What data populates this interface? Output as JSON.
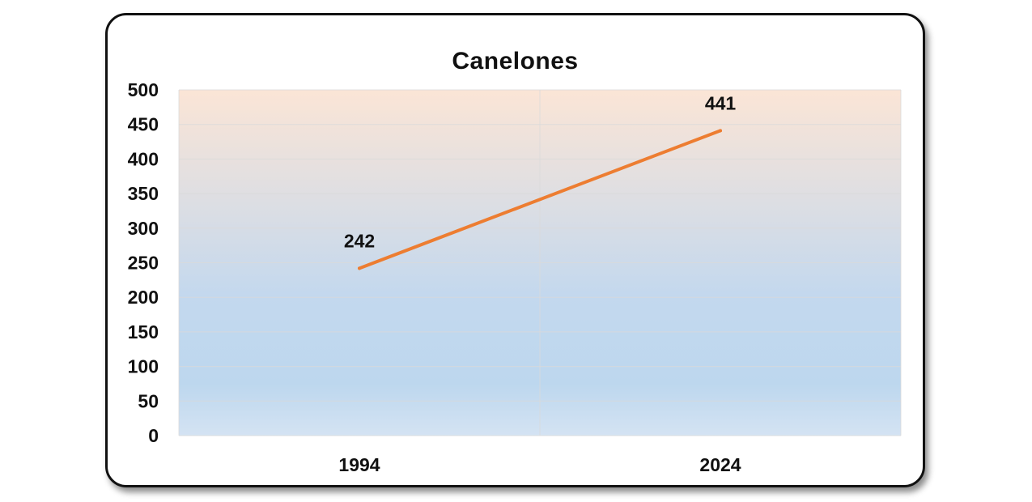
{
  "chart_data": {
    "type": "line",
    "title": "Canelones",
    "categories": [
      "1994",
      "2024"
    ],
    "series": [
      {
        "values": [
          242,
          441
        ],
        "color": "#ED7D31"
      }
    ],
    "data_labels": [
      "242",
      "441"
    ],
    "ylim": [
      0,
      500
    ],
    "y_ticks": [
      0,
      50,
      100,
      150,
      200,
      250,
      300,
      350,
      400,
      450,
      500
    ],
    "grid": true,
    "xlabel": "",
    "ylabel": "",
    "plot_background": {
      "top_color": "#FBE5D6",
      "bottom_color": "#BDD7EE"
    }
  }
}
